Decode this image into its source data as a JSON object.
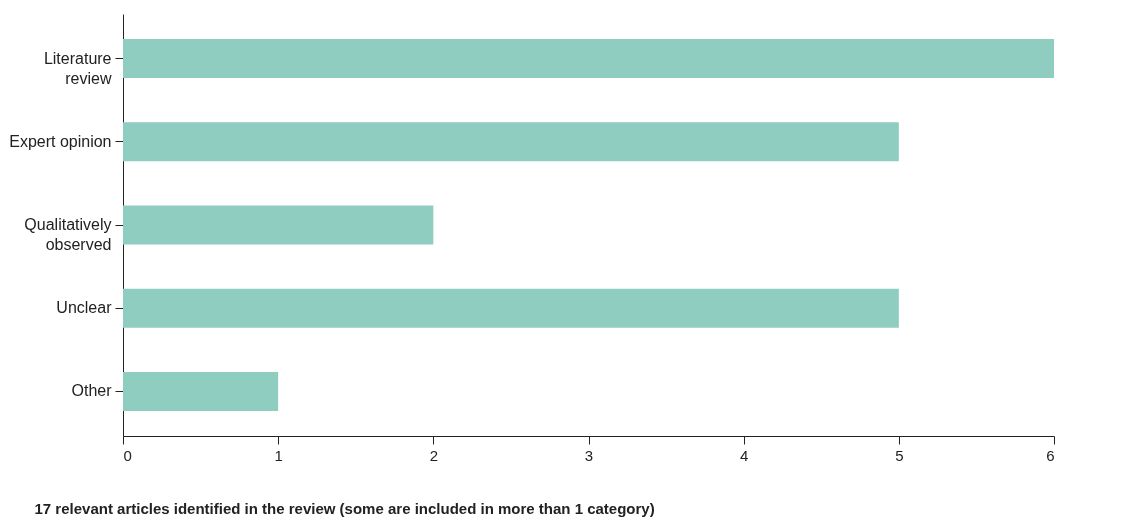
{
  "chart_data": {
    "type": "bar",
    "orientation": "horizontal",
    "categories": [
      "Literature review",
      "Expert opinion",
      "Qualitatively observed",
      "Unclear",
      "Other"
    ],
    "values": [
      6,
      5,
      2,
      5,
      1
    ],
    "color": "#8fcdc1",
    "xlim": [
      0,
      6
    ],
    "xticks": [
      0,
      1,
      2,
      3,
      4,
      5,
      6
    ],
    "xlabel": "17 relevant articles identified in the review (some are included in more than 1 category)",
    "grid": false,
    "legend": false
  }
}
